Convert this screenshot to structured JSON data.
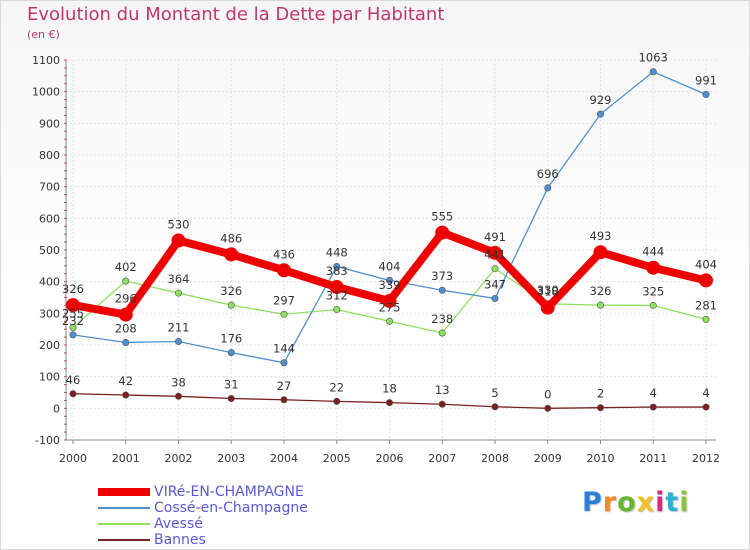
{
  "header": {
    "title": "Evolution du Montant de la Dette par Habitant",
    "subtitle": "(en €)"
  },
  "logo": {
    "text": "Proxiti",
    "letter_colors": [
      "#2a7fd4",
      "#f28a1f",
      "#67b52e",
      "#f2c01f",
      "#d42a7f",
      "#2ab0d4",
      "#8ac43f"
    ]
  },
  "chart_data": {
    "type": "line",
    "title": "Evolution du Montant de la Dette par Habitant",
    "subtitle": "(en €)",
    "xlabel": "",
    "ylabel": "",
    "ylim": [
      -100,
      1100
    ],
    "yticks": [
      -100,
      0,
      100,
      200,
      300,
      400,
      500,
      600,
      700,
      800,
      900,
      1000,
      1100
    ],
    "x": [
      "2000",
      "2001",
      "2002",
      "2003",
      "2004",
      "2005",
      "2006",
      "2007",
      "2008",
      "2009",
      "2010",
      "2011",
      "2012"
    ],
    "grid": true,
    "legend": "bottom-left",
    "series": [
      {
        "name": "VIRé-EN-CHAMPAGNE",
        "color": "#ee0000",
        "values": [
          326,
          296,
          530,
          486,
          436,
          383,
          339,
          555,
          491,
          318,
          493,
          444,
          404
        ],
        "labels": [
          "326",
          "296",
          "530",
          "486",
          "436",
          "383",
          "339",
          "555",
          "491",
          "318",
          "493",
          "444",
          "404"
        ]
      },
      {
        "name": "Cossé-en-Champagne",
        "color": "#4f8fd0",
        "values": [
          232,
          208,
          211,
          176,
          144,
          448,
          404,
          373,
          347,
          696,
          929,
          1063,
          991
        ],
        "labels": [
          "232",
          "208",
          "211",
          "176",
          "144",
          "448",
          "404",
          "373",
          "347",
          "696",
          "929",
          "1063",
          "991"
        ]
      },
      {
        "name": "Avessé",
        "color": "#8fe060",
        "values": [
          255,
          402,
          364,
          326,
          297,
          312,
          275,
          238,
          441,
          330,
          326,
          325,
          281
        ],
        "labels": [
          "255",
          "402",
          "364",
          "326",
          "297",
          "312",
          "275",
          "238",
          "441",
          "330",
          "326",
          "325",
          "281"
        ]
      },
      {
        "name": "Bannes",
        "color": "#7a2020",
        "values": [
          46,
          42,
          38,
          31,
          27,
          22,
          18,
          13,
          5,
          0,
          2,
          4,
          4
        ],
        "labels": [
          "46",
          "42",
          "38",
          "31",
          "27",
          "22",
          "18",
          "13",
          "5",
          "0",
          "2",
          "4",
          "4"
        ]
      }
    ]
  }
}
